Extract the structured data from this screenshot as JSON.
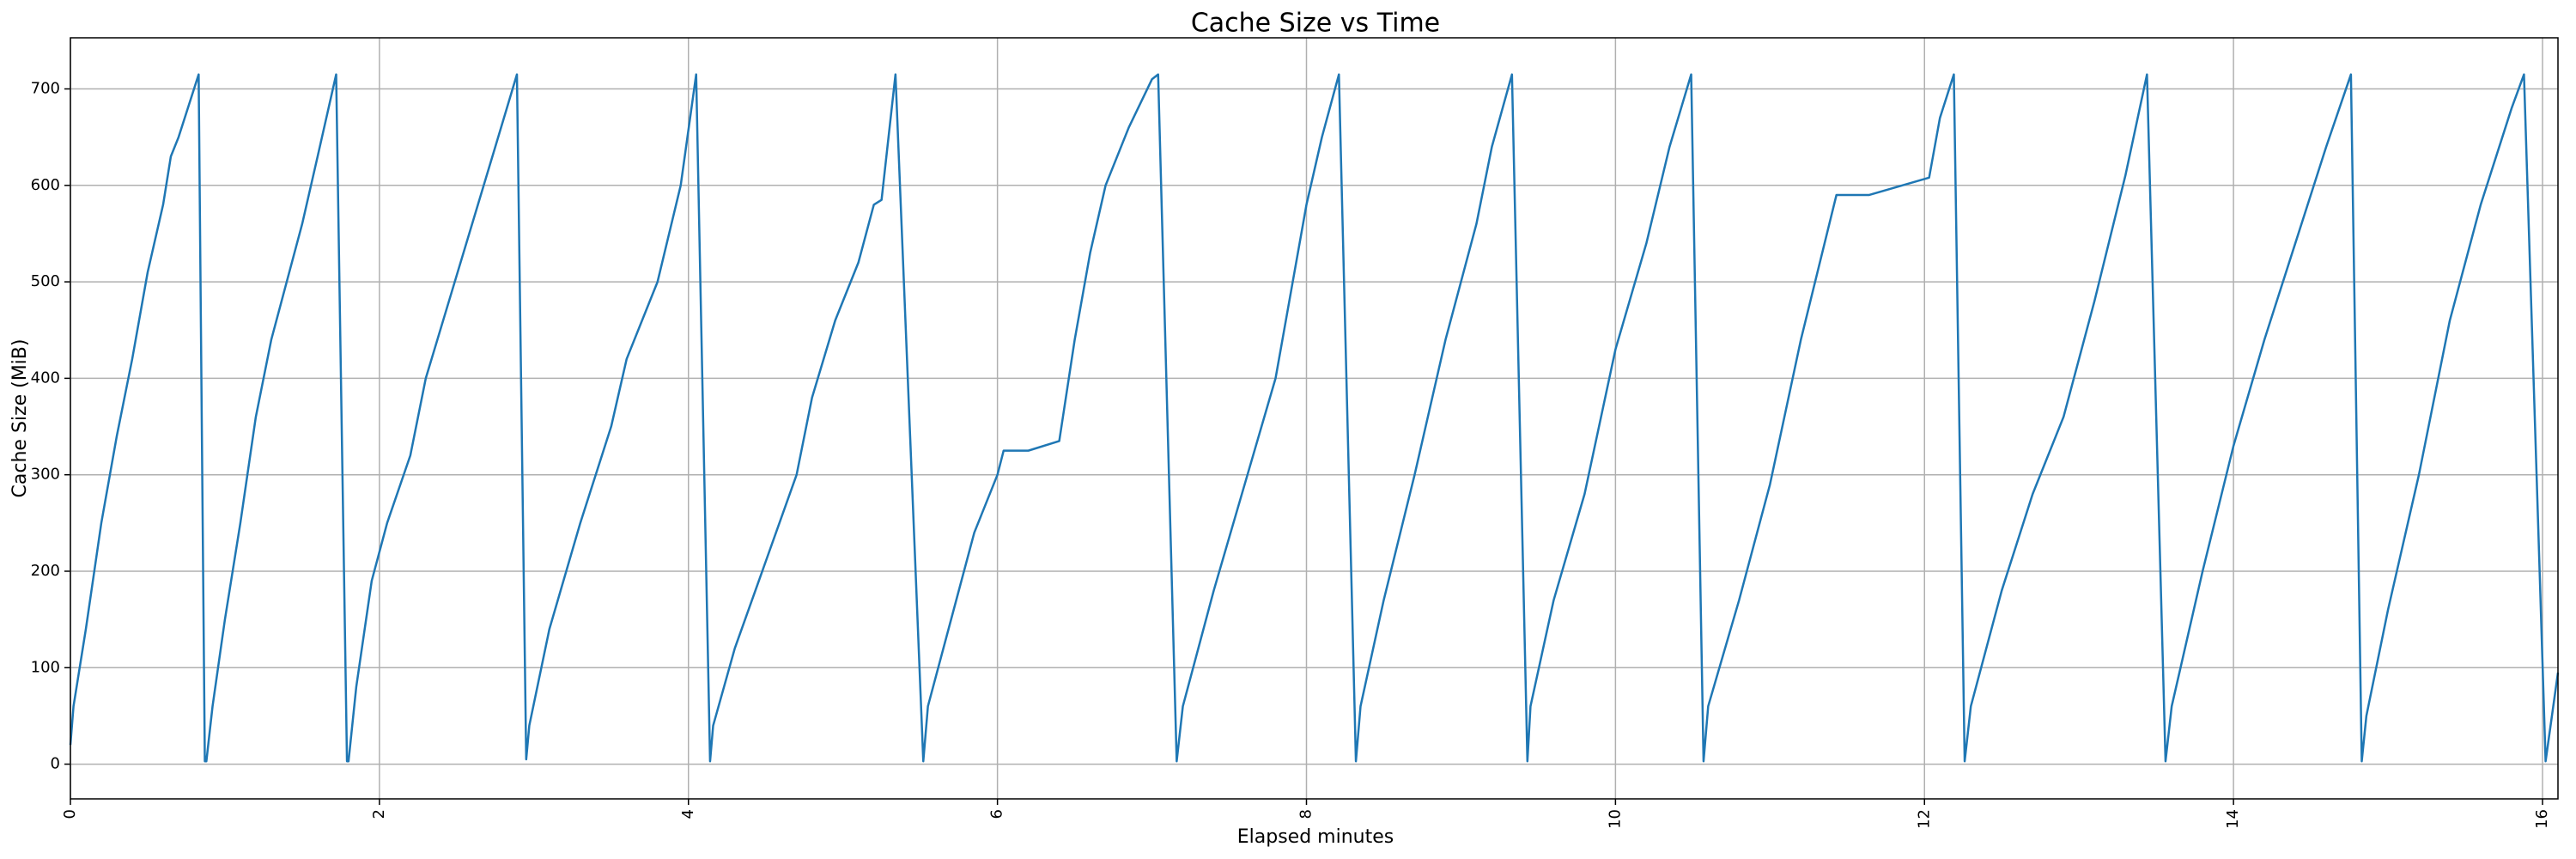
{
  "chart_data": {
    "type": "line",
    "title": "Cache Size vs Time",
    "xlabel": "Elapsed minutes",
    "ylabel": "Cache Size (MiB)",
    "color": "#1f77b4",
    "grid": true,
    "x": [
      0,
      0.02,
      0.1,
      0.2,
      0.3,
      0.4,
      0.5,
      0.6,
      0.65,
      0.7,
      0.78,
      0.83,
      0.87,
      0.88,
      0.92,
      1.0,
      1.1,
      1.2,
      1.3,
      1.4,
      1.5,
      1.6,
      1.72,
      1.79,
      1.8,
      1.85,
      1.95,
      2.05,
      2.2,
      2.3,
      2.45,
      2.6,
      2.75,
      2.89,
      2.95,
      2.97,
      3.1,
      3.3,
      3.5,
      3.6,
      3.8,
      3.95,
      4.05,
      4.14,
      4.16,
      4.3,
      4.5,
      4.7,
      4.8,
      4.95,
      5.1,
      5.2,
      5.25,
      5.34,
      5.52,
      5.55,
      5.7,
      5.85,
      6.0,
      6.04,
      6.2,
      6.4,
      6.5,
      6.6,
      6.7,
      6.85,
      7.0,
      7.04,
      7.16,
      7.2,
      7.4,
      7.6,
      7.8,
      7.9,
      8.0,
      8.1,
      8.21,
      8.32,
      8.35,
      8.5,
      8.7,
      8.9,
      9.1,
      9.2,
      9.33,
      9.43,
      9.45,
      9.6,
      9.8,
      10.0,
      10.2,
      10.35,
      10.49,
      10.57,
      10.6,
      10.8,
      11.0,
      11.2,
      11.43,
      11.64,
      12.03,
      12.1,
      12.19,
      12.26,
      12.3,
      12.5,
      12.7,
      12.9,
      13.1,
      13.3,
      13.44,
      13.56,
      13.6,
      13.8,
      14.0,
      14.2,
      14.4,
      14.6,
      14.76,
      14.83,
      14.86,
      15.0,
      15.2,
      15.4,
      15.6,
      15.8,
      15.88,
      16.02,
      16.1
    ],
    "values": [
      20,
      60,
      140,
      250,
      340,
      420,
      510,
      580,
      630,
      650,
      690,
      715,
      3,
      3,
      60,
      150,
      250,
      360,
      440,
      500,
      560,
      630,
      715,
      3,
      3,
      80,
      190,
      250,
      320,
      400,
      480,
      560,
      640,
      715,
      5,
      40,
      140,
      250,
      350,
      420,
      500,
      600,
      715,
      3,
      40,
      120,
      210,
      300,
      380,
      460,
      520,
      580,
      585,
      715,
      3,
      60,
      150,
      240,
      300,
      325,
      325,
      335,
      440,
      530,
      600,
      660,
      710,
      715,
      3,
      60,
      180,
      290,
      400,
      490,
      580,
      650,
      715,
      3,
      60,
      170,
      300,
      440,
      560,
      640,
      715,
      3,
      60,
      170,
      280,
      430,
      540,
      640,
      715,
      3,
      60,
      170,
      290,
      440,
      590,
      590,
      608,
      670,
      715,
      3,
      60,
      180,
      280,
      360,
      480,
      610,
      715,
      3,
      60,
      200,
      330,
      440,
      540,
      640,
      715,
      3,
      50,
      160,
      300,
      460,
      580,
      680,
      715,
      3,
      95
    ],
    "xlim": [
      0,
      16.1
    ],
    "ylim": [
      -36,
      753
    ],
    "xticks": [
      0,
      2,
      4,
      6,
      8,
      10,
      12,
      14,
      16
    ],
    "yticks": [
      0,
      100,
      200,
      300,
      400,
      500,
      600,
      700
    ]
  }
}
